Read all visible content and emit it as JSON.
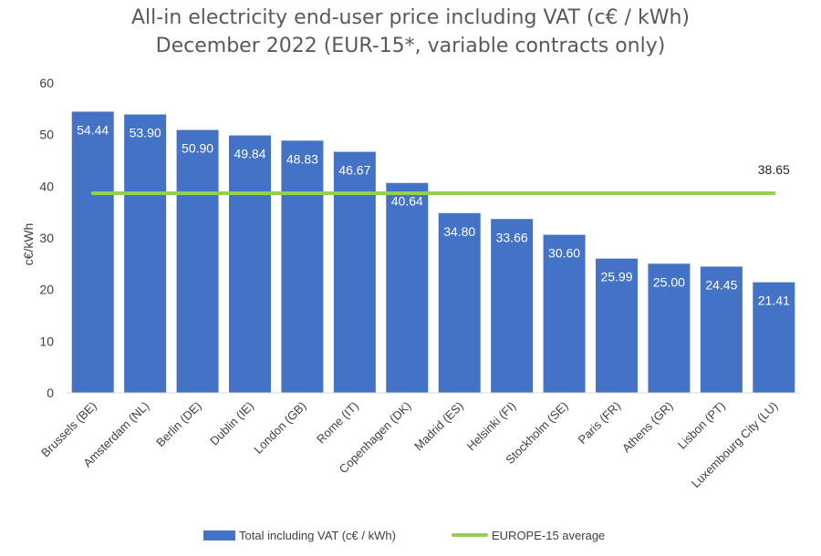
{
  "chart_data": {
    "type": "bar",
    "title": "All-in electricity end-user price including VAT (c€ / kWh)",
    "subtitle": "December 2022 (EUR-15*, variable contracts only)",
    "xlabel": "",
    "ylabel": "c€/kWh",
    "ylim": [
      0,
      60
    ],
    "yticks": [
      "0",
      "10",
      "20",
      "30",
      "40",
      "50",
      "60"
    ],
    "grid": false,
    "legend_position": "bottom",
    "categories": [
      "Brussels (BE)",
      "Amsterdam (NL)",
      "Berlin (DE)",
      "Dublin (IE)",
      "London (GB)",
      "Rome (IT)",
      "Copenhagen (DK)",
      "Madrid (ES)",
      "Helsinki (FI)",
      "Stockholm (SE)",
      "Paris (FR)",
      "Athens (GR)",
      "Lisbon (PT)",
      "Luxembourg City (LU)"
    ],
    "series": [
      {
        "name": "Total including VAT (c€ / kWh)",
        "type": "bar",
        "color": "#4472C4",
        "values": [
          54.44,
          53.9,
          50.9,
          49.84,
          48.83,
          46.67,
          40.64,
          34.8,
          33.66,
          30.6,
          25.99,
          25.0,
          24.45,
          21.41
        ],
        "labels": [
          "54.44",
          "53.90",
          "50.90",
          "49.84",
          "48.83",
          "46.67",
          "40.64",
          "34.80",
          "33.66",
          "30.60",
          "25.99",
          "25.00",
          "24.45",
          "21.41"
        ]
      },
      {
        "name": "EUROPE-15 average",
        "type": "line",
        "color": "#92D050",
        "value": 38.65,
        "label": "38.65"
      }
    ]
  }
}
